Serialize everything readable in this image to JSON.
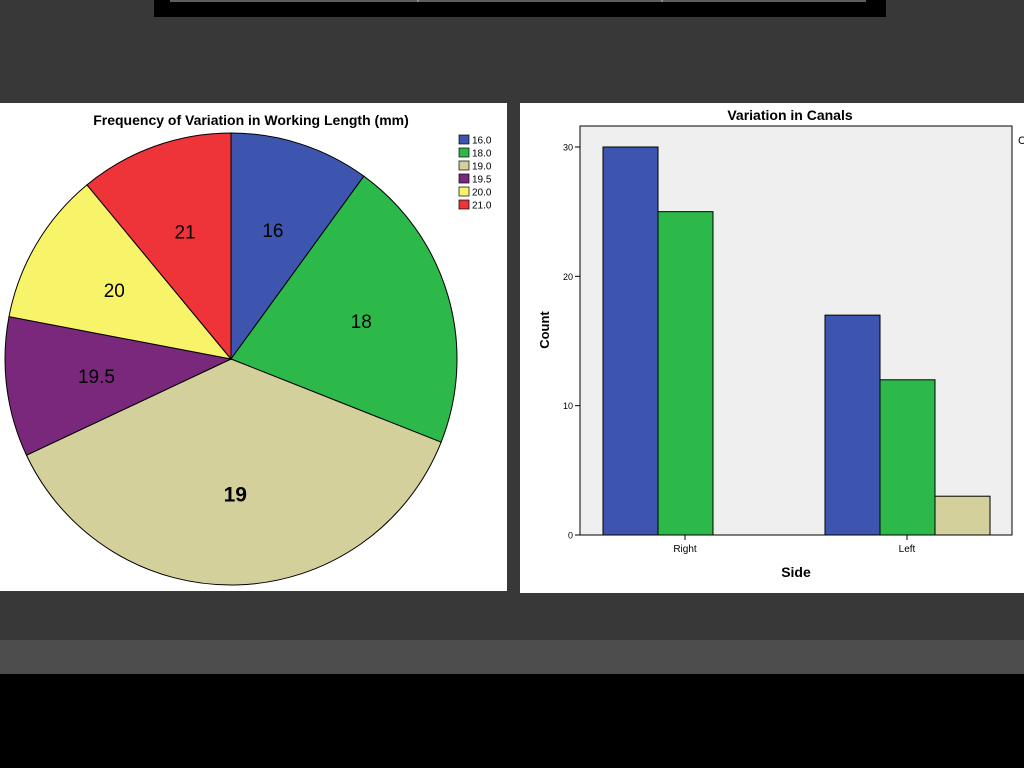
{
  "chart_data": [
    {
      "type": "pie",
      "title": "Frequency of Variation in Working Length (mm)",
      "legend_placement": "top-right",
      "slices": [
        {
          "name": "16.0",
          "label": "16",
          "value": 10,
          "color": "#3e55b0"
        },
        {
          "name": "18.0",
          "label": "18",
          "value": 21,
          "color": "#2db84a"
        },
        {
          "name": "19.0",
          "label": "19",
          "value": 37,
          "color": "#d4d09c"
        },
        {
          "name": "19.5",
          "label": "19.5",
          "value": 10,
          "color": "#7a287c"
        },
        {
          "name": "20.0",
          "label": "20",
          "value": 11,
          "color": "#f8f46a"
        },
        {
          "name": "21.0",
          "label": "21",
          "value": 11,
          "color": "#ee3339"
        }
      ]
    },
    {
      "type": "bar",
      "title": "Variation in Canals",
      "xlabel": "Side",
      "ylabel": "Count",
      "categories": [
        "Right",
        "Left"
      ],
      "ylim": [
        0,
        30
      ],
      "yticks": [
        "0",
        "10",
        "20",
        "30"
      ],
      "legend_fragment": "C",
      "series": [
        {
          "values": [
            30,
            17
          ],
          "color": "#3e55b0"
        },
        {
          "values": [
            25,
            12
          ],
          "color": "#2db84a"
        },
        {
          "values": [
            null,
            3
          ],
          "color": "#d4d09c"
        }
      ]
    }
  ]
}
